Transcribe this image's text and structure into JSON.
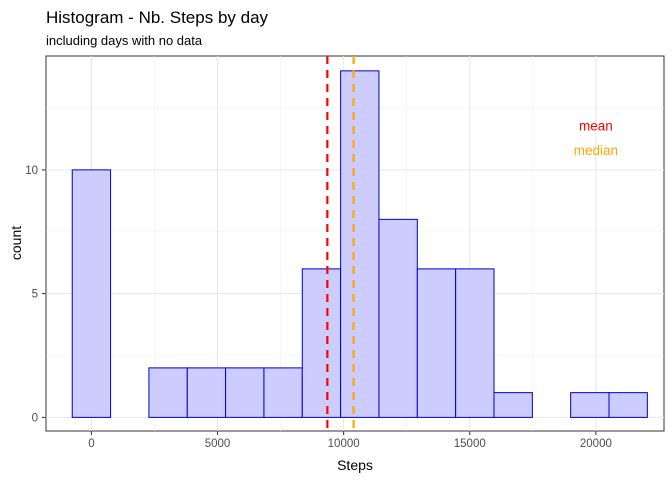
{
  "chart_data": {
    "type": "bar",
    "title": "Histogram - Nb. Steps by day",
    "subtitle": "including days with no data",
    "xlabel": "Steps",
    "ylabel": "count",
    "xlim": [
      -1800,
      22700
    ],
    "ylim": [
      -0.55,
      14.6
    ],
    "x_ticks": [
      0,
      5000,
      10000,
      15000,
      20000
    ],
    "x_tick_labels": [
      "0",
      "5000",
      "10000",
      "15000",
      "20000"
    ],
    "y_ticks": [
      0,
      5,
      10
    ],
    "y_tick_labels": [
      "0",
      "5",
      "10"
    ],
    "grid": true,
    "bins": [
      {
        "x_start": -760,
        "x_end": 760,
        "count": 10
      },
      {
        "x_start": 760,
        "x_end": 2280,
        "count": 0
      },
      {
        "x_start": 2280,
        "x_end": 3800,
        "count": 2
      },
      {
        "x_start": 3800,
        "x_end": 5320,
        "count": 2
      },
      {
        "x_start": 5320,
        "x_end": 6840,
        "count": 2
      },
      {
        "x_start": 6840,
        "x_end": 8360,
        "count": 2
      },
      {
        "x_start": 8360,
        "x_end": 9880,
        "count": 6
      },
      {
        "x_start": 9880,
        "x_end": 11400,
        "count": 14
      },
      {
        "x_start": 11400,
        "x_end": 12920,
        "count": 8
      },
      {
        "x_start": 12920,
        "x_end": 14440,
        "count": 6
      },
      {
        "x_start": 14440,
        "x_end": 15960,
        "count": 6
      },
      {
        "x_start": 15960,
        "x_end": 17480,
        "count": 1
      },
      {
        "x_start": 17480,
        "x_end": 19000,
        "count": 0
      },
      {
        "x_start": 19000,
        "x_end": 20520,
        "count": 1
      },
      {
        "x_start": 20520,
        "x_end": 22040,
        "count": 1
      }
    ],
    "bar_fill": "#ccccff",
    "bar_stroke": "#0000cd",
    "reference_lines": [
      {
        "name": "mean",
        "value": 9354,
        "color": "#ff0000"
      },
      {
        "name": "median",
        "value": 10395,
        "color": "#ffa500"
      }
    ],
    "annotations": [
      {
        "text": "mean",
        "color": "#ff0000",
        "x": 20000,
        "y": 11.8
      },
      {
        "text": "median",
        "color": "#ffa500",
        "x": 20000,
        "y": 10.8
      }
    ]
  }
}
